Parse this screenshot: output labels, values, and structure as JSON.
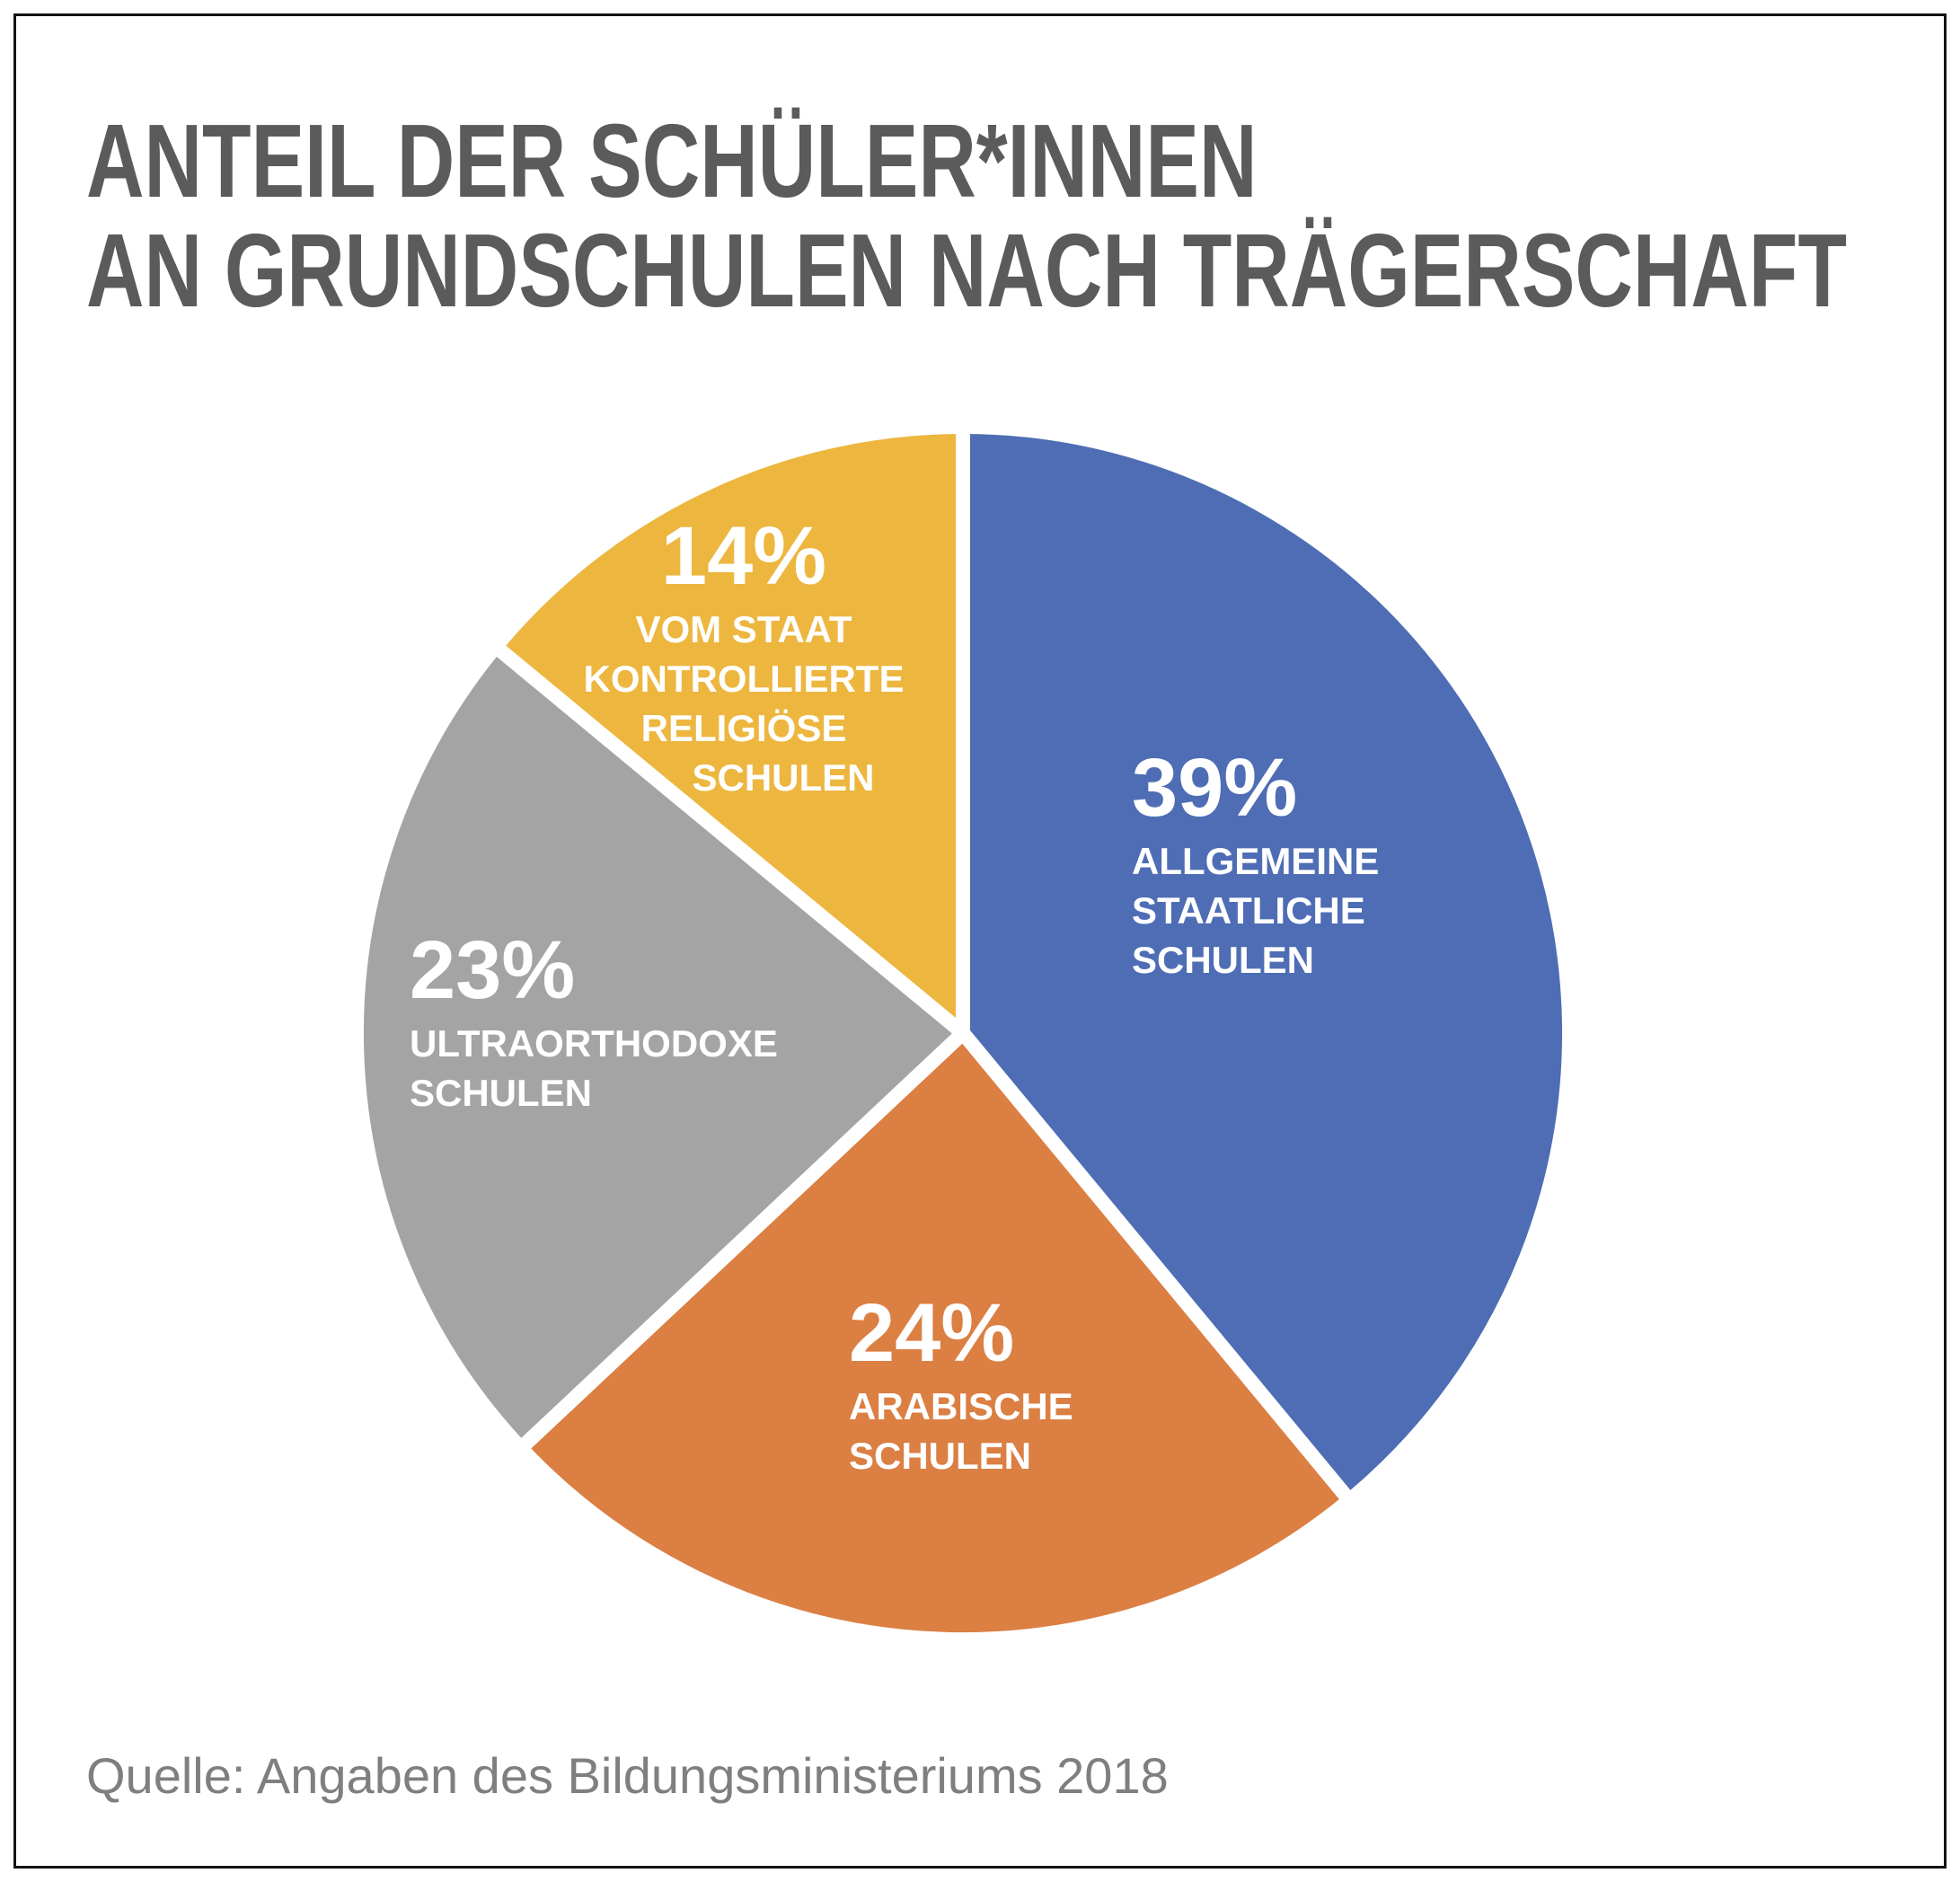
{
  "title": {
    "line1": "ANTEIL DER SCHÜLER*INNEN",
    "line2": "AN GRUNDSCHULEN NACH TRÄGERSCHAFT"
  },
  "source": "Quelle: Angaben des Bildungsministeriums 2018",
  "colors": {
    "title_text": "#5B5B5B",
    "source_text": "#7F7F7F",
    "frame_border": "#141414",
    "background": "#FFFFFF",
    "slice_label_text": "#FFFFFF"
  },
  "chart_data": {
    "type": "pie",
    "title": "ANTEIL DER SCHÜLER*INNEN AN GRUNDSCHULEN NACH TRÄGERSCHAFT",
    "start_angle_deg": 0,
    "direction": "clockwise",
    "legend_position": "labels-inside-slices",
    "separator_color": "#FFFFFF",
    "label_color": "#FFFFFF",
    "slices": [
      {
        "id": "allgemeine-staatliche-schulen",
        "value_pct": 39,
        "value_label": "39%",
        "label": "ALLGEMEINE STAATLICHE SCHULEN",
        "label_lines": [
          "ALLGEMEINE",
          "STAATLICHE",
          "SCHULEN"
        ],
        "color": "#4E6DB4"
      },
      {
        "id": "arabische-schulen",
        "value_pct": 24,
        "value_label": "24%",
        "label": "ARABISCHE SCHULEN",
        "label_lines": [
          "ARABISCHE",
          "SCHULEN"
        ],
        "color": "#DB7F43"
      },
      {
        "id": "ultraorthodoxe-schulen",
        "value_pct": 23,
        "value_label": "23%",
        "label": "ULTRAORTHODOXE SCHULEN",
        "label_lines": [
          "ULTRAORTHODOXE",
          "SCHULEN"
        ],
        "color": "#A4A4A4"
      },
      {
        "id": "vom-staat-kontrollierte-religioese-schulen",
        "value_pct": 14,
        "value_label": "14%",
        "label": "VOM STAAT KONTROLLIERTE RELIGIÖSE SCHULEN",
        "label_lines": [
          "VOM STAAT",
          "KONTROLLIERTE",
          "RELIGIÖSE",
          "SCHULEN"
        ],
        "color": "#EDB63F"
      }
    ]
  }
}
